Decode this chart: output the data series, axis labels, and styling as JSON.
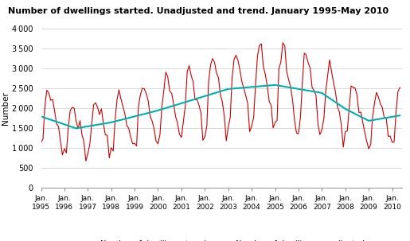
{
  "title": "Number of dwellings started. Unadjusted and trend. January 1995-May 2010",
  "ylabel": "Number",
  "ylim": [
    0,
    4000
  ],
  "yticks": [
    0,
    500,
    1000,
    1500,
    2000,
    2500,
    3000,
    3500,
    4000
  ],
  "xlabel_years": [
    "Jan.\n1995",
    "Jan.\n1996",
    "Jan.\n1997",
    "Jan.\n1998",
    "Jan.\n1999",
    "Jan.\n2000",
    "Jan.\n2001",
    "Jan.\n2002",
    "Jan.\n2003",
    "Jan.\n2004",
    "Jan.\n2005",
    "Jan.\n2006",
    "Jan.\n2007",
    "Jan.\n2008",
    "Jan.\n2009",
    "Jan.\n2010"
  ],
  "trend_color": "#00b0b0",
  "unadj_color": "#cc0000",
  "bg_color": "#ffffff",
  "grid_color": "#cccccc",
  "legend_trend": "Number of dwellings, trend",
  "legend_unadj": "Number of dwellings, unadjusted"
}
